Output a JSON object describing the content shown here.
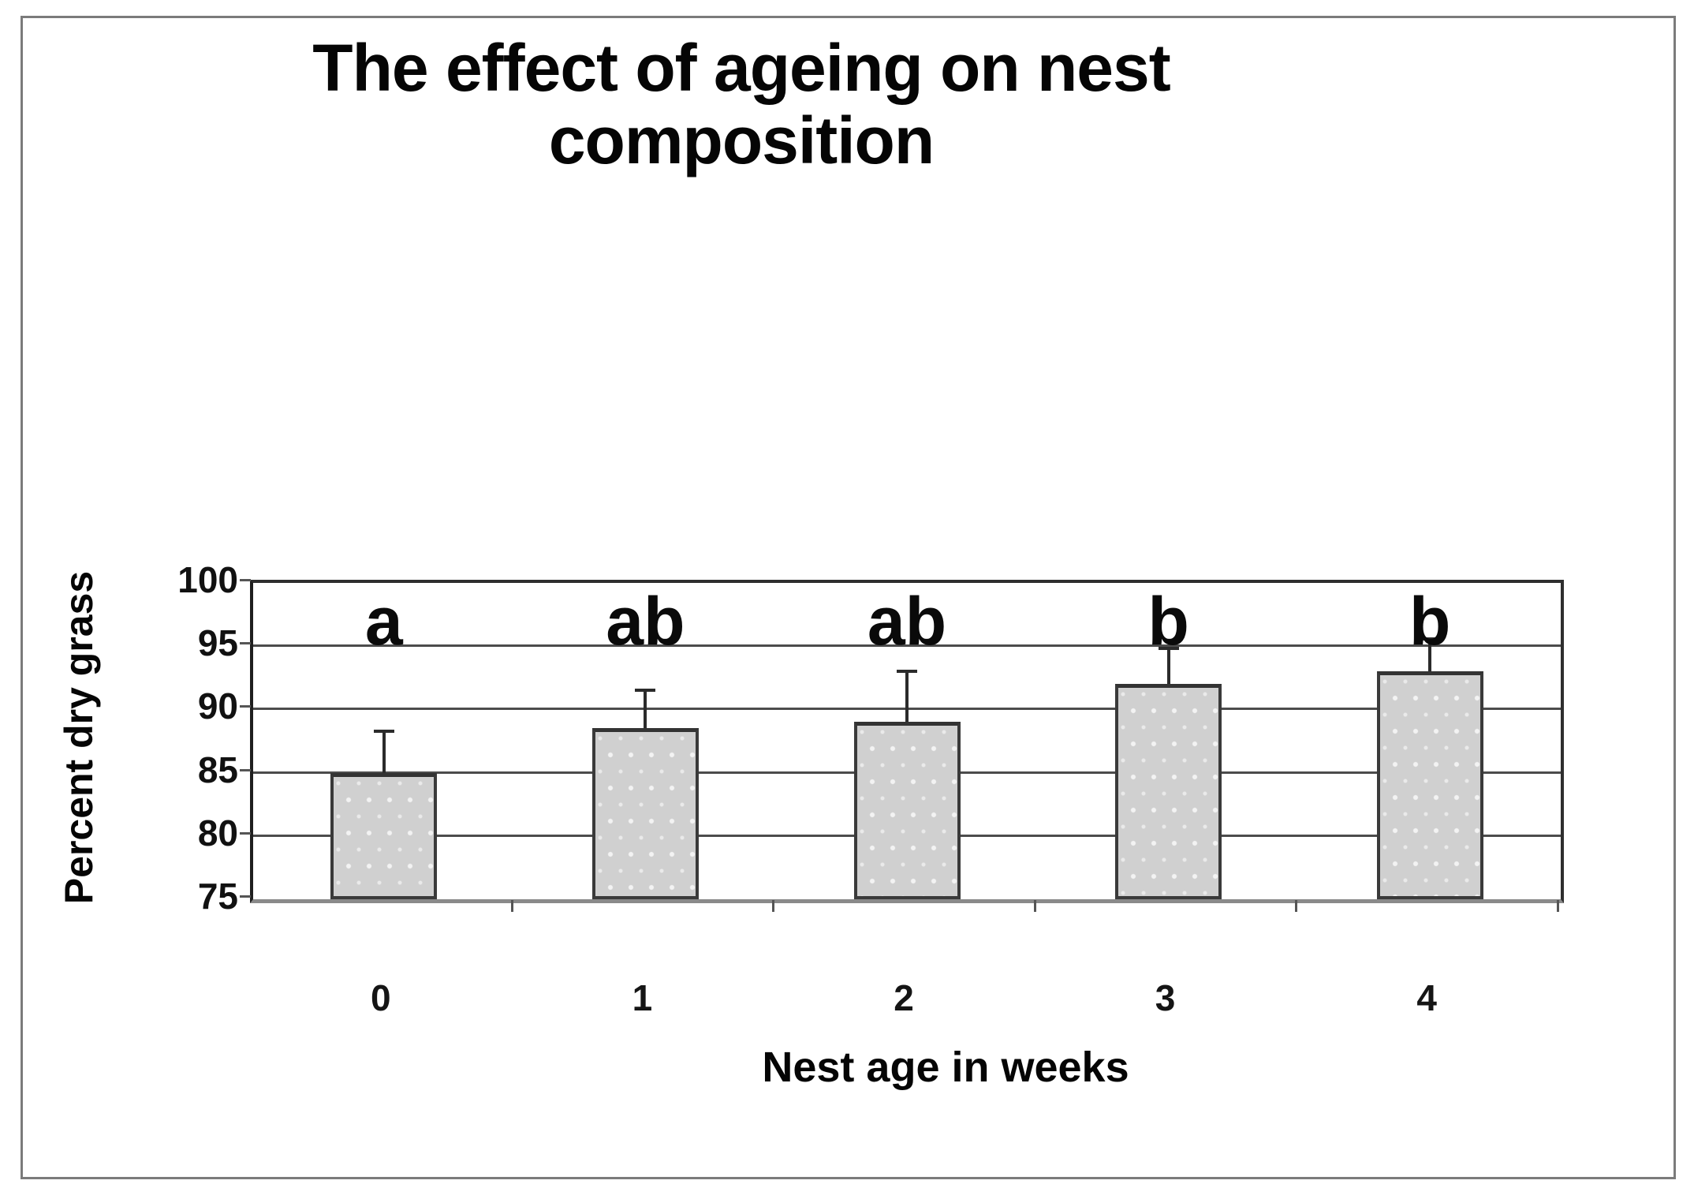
{
  "chart_data": {
    "type": "bar",
    "title": "The effect of ageing on nest composition",
    "xlabel": "Nest age in weeks",
    "ylabel": "Percent dry grass",
    "categories": [
      "0",
      "1",
      "2",
      "3",
      "4"
    ],
    "series": [
      {
        "name": "Percent dry grass",
        "values": [
          85,
          88.5,
          89,
          92,
          93
        ],
        "error_plus": [
          3.3,
          3.0,
          4.0,
          2.8,
          2.6
        ]
      }
    ],
    "annotations": {
      "significance_letters": [
        "a",
        "ab",
        "ab",
        "b",
        "b"
      ]
    },
    "ylim": [
      75,
      100
    ],
    "yticks": [
      75,
      80,
      85,
      90,
      95,
      100
    ],
    "grid": true,
    "legend_position": "none",
    "colors": {
      "bar_fill": "#d0d0d0",
      "bar_border": "#3a3a3a",
      "gridline": "#4c4c4c",
      "axis_frame": "#2e2e2e",
      "bottom_axis": "#8a8a8a",
      "outer_border": "#7b7b7b",
      "text": "#000000",
      "background": "#ffffff"
    }
  }
}
